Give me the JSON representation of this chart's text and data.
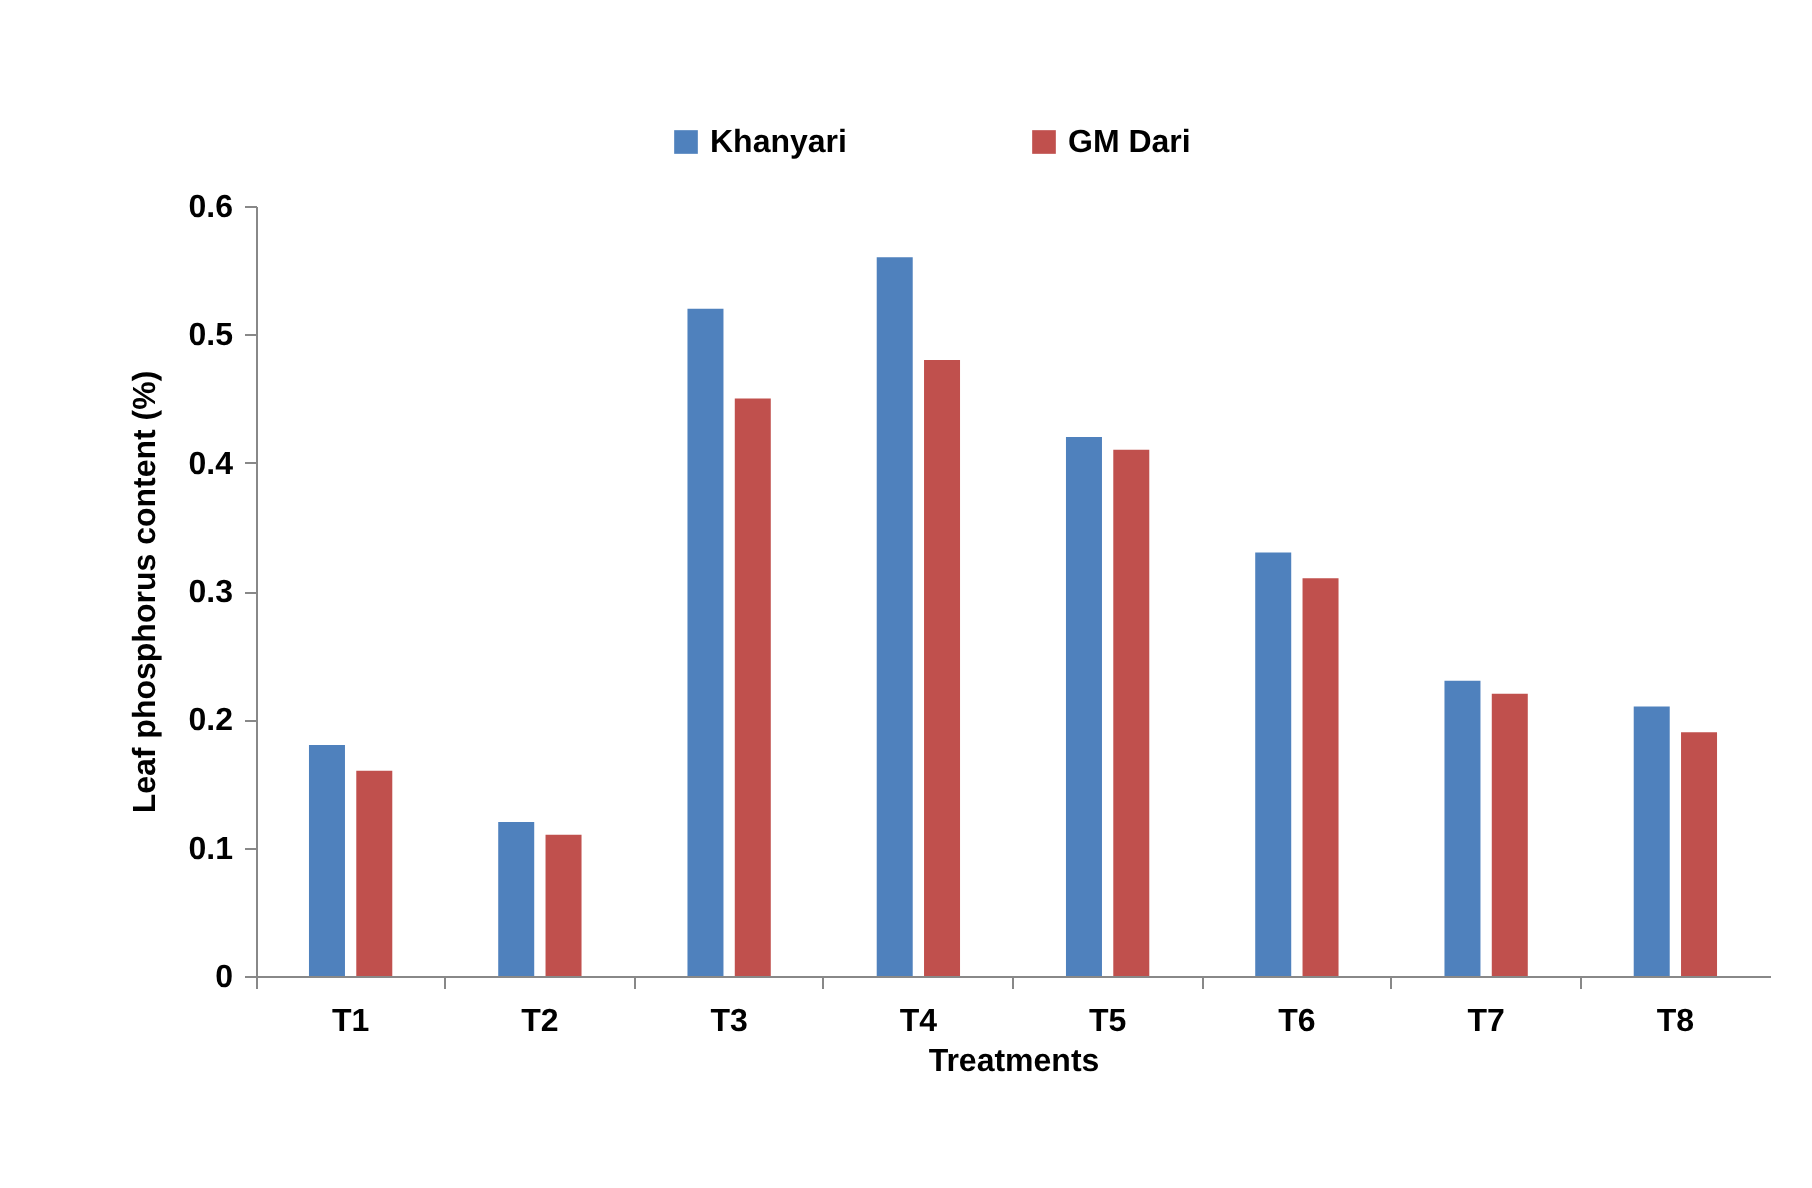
{
  "chart_data": {
    "type": "bar",
    "xlabel": "Treatments",
    "ylabel": "Leaf phosphorus content (%)",
    "categories": [
      "T1",
      "T2",
      "T3",
      "T4",
      "T5",
      "T6",
      "T7",
      "T8"
    ],
    "series": [
      {
        "name": "Khanyari",
        "color": "#4f81bd",
        "values": [
          0.18,
          0.12,
          0.52,
          0.56,
          0.42,
          0.33,
          0.23,
          0.21
        ]
      },
      {
        "name": "GM Dari",
        "color": "#c0504d",
        "values": [
          0.16,
          0.11,
          0.45,
          0.48,
          0.41,
          0.31,
          0.22,
          0.19
        ]
      }
    ],
    "ylim": [
      0,
      0.6
    ],
    "yticks": [
      0,
      0.1,
      0.2,
      0.3,
      0.4,
      0.5,
      0.6
    ],
    "legend": "top"
  }
}
